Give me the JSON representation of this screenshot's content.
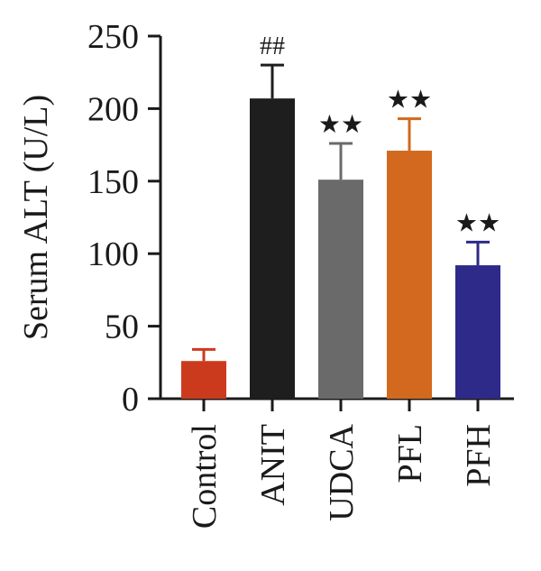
{
  "chart_data": {
    "type": "bar",
    "title": "",
    "xlabel": "",
    "ylabel": "Serum ALT (U/L)",
    "ylim": [
      0,
      250
    ],
    "yticks": [
      0,
      50,
      100,
      150,
      200,
      250
    ],
    "categories": [
      "Control",
      "ANIT",
      "UDCA",
      "PFL",
      "PFH"
    ],
    "values": [
      26,
      207,
      151,
      171,
      92
    ],
    "errors": [
      8,
      23,
      25,
      22,
      16
    ],
    "annotations": [
      "",
      "##",
      "★★",
      "★★",
      "★★"
    ],
    "colors": [
      "#cc3a1e",
      "#1e1e1e",
      "#6a6a6a",
      "#d2691e",
      "#2e2a8a"
    ],
    "grid": false,
    "legend": "none"
  }
}
